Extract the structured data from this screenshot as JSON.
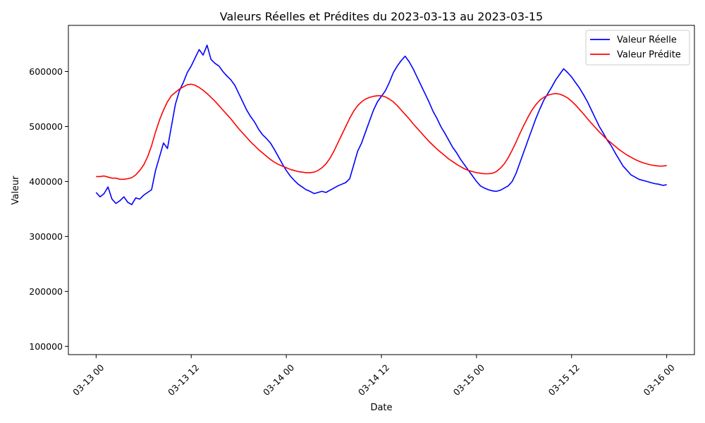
{
  "chart_data": {
    "type": "line",
    "title": "Valeurs Réelles et Prédites du 2023-03-13 au 2023-03-15",
    "xlabel": "Date",
    "ylabel": "Valeur",
    "x_unit": "hours since 2023-03-13 00:00",
    "xlim": [
      -3.5,
      75.5
    ],
    "ylim": [
      85000,
      684000
    ],
    "x_ticks": [
      {
        "x": 0,
        "label": "03-13 00"
      },
      {
        "x": 12,
        "label": "03-13 12"
      },
      {
        "x": 24,
        "label": "03-14 00"
      },
      {
        "x": 36,
        "label": "03-14 12"
      },
      {
        "x": 48,
        "label": "03-15 00"
      },
      {
        "x": 60,
        "label": "03-15 12"
      },
      {
        "x": 72,
        "label": "03-16 00"
      }
    ],
    "y_ticks": [
      {
        "y": 100000,
        "label": "100000"
      },
      {
        "y": 200000,
        "label": "200000"
      },
      {
        "y": 300000,
        "label": "300000"
      },
      {
        "y": 400000,
        "label": "400000"
      },
      {
        "y": 500000,
        "label": "500000"
      },
      {
        "y": 600000,
        "label": "600000"
      }
    ],
    "grid": false,
    "legend_position": "top-right",
    "series": [
      {
        "name": "Valeur Réelle",
        "color": "#0000ff",
        "points": [
          [
            0,
            380000
          ],
          [
            0.5,
            372000
          ],
          [
            1,
            378000
          ],
          [
            1.5,
            390000
          ],
          [
            2,
            368000
          ],
          [
            2.5,
            360000
          ],
          [
            3,
            365000
          ],
          [
            3.5,
            372000
          ],
          [
            4,
            362000
          ],
          [
            4.5,
            358000
          ],
          [
            5,
            370000
          ],
          [
            5.5,
            368000
          ],
          [
            6,
            375000
          ],
          [
            6.5,
            380000
          ],
          [
            7,
            385000
          ],
          [
            7.5,
            420000
          ],
          [
            8,
            445000
          ],
          [
            8.5,
            470000
          ],
          [
            9,
            460000
          ],
          [
            9.5,
            500000
          ],
          [
            10,
            540000
          ],
          [
            10.5,
            565000
          ],
          [
            11,
            580000
          ],
          [
            11.5,
            598000
          ],
          [
            12,
            610000
          ],
          [
            12.5,
            625000
          ],
          [
            13,
            640000
          ],
          [
            13.5,
            630000
          ],
          [
            14,
            648000
          ],
          [
            14.5,
            622000
          ],
          [
            15,
            615000
          ],
          [
            15.5,
            610000
          ],
          [
            16,
            600000
          ],
          [
            16.5,
            592000
          ],
          [
            17,
            585000
          ],
          [
            17.5,
            575000
          ],
          [
            18,
            560000
          ],
          [
            18.5,
            545000
          ],
          [
            19,
            530000
          ],
          [
            19.5,
            518000
          ],
          [
            20,
            508000
          ],
          [
            20.5,
            495000
          ],
          [
            21,
            485000
          ],
          [
            21.5,
            478000
          ],
          [
            22,
            470000
          ],
          [
            22.5,
            458000
          ],
          [
            23,
            445000
          ],
          [
            23.5,
            432000
          ],
          [
            24,
            420000
          ],
          [
            24.5,
            410000
          ],
          [
            25,
            402000
          ],
          [
            25.5,
            395000
          ],
          [
            26,
            390000
          ],
          [
            26.5,
            385000
          ],
          [
            27,
            382000
          ],
          [
            27.5,
            378000
          ],
          [
            28,
            380000
          ],
          [
            28.5,
            382000
          ],
          [
            29,
            380000
          ],
          [
            29.5,
            384000
          ],
          [
            30,
            388000
          ],
          [
            30.5,
            392000
          ],
          [
            31,
            395000
          ],
          [
            31.5,
            398000
          ],
          [
            32,
            405000
          ],
          [
            32.5,
            430000
          ],
          [
            33,
            455000
          ],
          [
            33.5,
            470000
          ],
          [
            34,
            490000
          ],
          [
            34.5,
            510000
          ],
          [
            35,
            530000
          ],
          [
            35.5,
            545000
          ],
          [
            36,
            555000
          ],
          [
            36.5,
            565000
          ],
          [
            37,
            580000
          ],
          [
            37.5,
            598000
          ],
          [
            38,
            610000
          ],
          [
            38.5,
            620000
          ],
          [
            39,
            628000
          ],
          [
            39.5,
            618000
          ],
          [
            40,
            605000
          ],
          [
            40.5,
            590000
          ],
          [
            41,
            575000
          ],
          [
            41.5,
            560000
          ],
          [
            42,
            545000
          ],
          [
            42.5,
            528000
          ],
          [
            43,
            515000
          ],
          [
            43.5,
            500000
          ],
          [
            44,
            488000
          ],
          [
            44.5,
            475000
          ],
          [
            45,
            462000
          ],
          [
            45.5,
            452000
          ],
          [
            46,
            440000
          ],
          [
            46.5,
            430000
          ],
          [
            47,
            420000
          ],
          [
            47.5,
            410000
          ],
          [
            48,
            400000
          ],
          [
            48.5,
            392000
          ],
          [
            49,
            388000
          ],
          [
            49.5,
            385000
          ],
          [
            50,
            383000
          ],
          [
            50.5,
            382000
          ],
          [
            51,
            384000
          ],
          [
            51.5,
            388000
          ],
          [
            52,
            392000
          ],
          [
            52.5,
            400000
          ],
          [
            53,
            415000
          ],
          [
            53.5,
            435000
          ],
          [
            54,
            455000
          ],
          [
            54.5,
            475000
          ],
          [
            55,
            495000
          ],
          [
            55.5,
            515000
          ],
          [
            56,
            532000
          ],
          [
            56.5,
            548000
          ],
          [
            57,
            560000
          ],
          [
            57.5,
            572000
          ],
          [
            58,
            585000
          ],
          [
            58.5,
            595000
          ],
          [
            59,
            605000
          ],
          [
            59.5,
            598000
          ],
          [
            60,
            590000
          ],
          [
            60.5,
            580000
          ],
          [
            61,
            570000
          ],
          [
            61.5,
            558000
          ],
          [
            62,
            545000
          ],
          [
            62.5,
            530000
          ],
          [
            63,
            515000
          ],
          [
            63.5,
            500000
          ],
          [
            64,
            488000
          ],
          [
            64.5,
            475000
          ],
          [
            65,
            465000
          ],
          [
            65.5,
            452000
          ],
          [
            66,
            440000
          ],
          [
            66.5,
            428000
          ],
          [
            67,
            420000
          ],
          [
            67.5,
            412000
          ],
          [
            68,
            408000
          ],
          [
            68.5,
            404000
          ],
          [
            69,
            402000
          ],
          [
            69.5,
            400000
          ],
          [
            70,
            398000
          ],
          [
            70.5,
            396000
          ],
          [
            71,
            395000
          ],
          [
            71.5,
            393000
          ],
          [
            72,
            394000
          ]
        ]
      },
      {
        "name": "Valeur Prédite",
        "color": "#ff0000",
        "points": [
          [
            0,
            409000
          ],
          [
            0.5,
            409000
          ],
          [
            1,
            410000
          ],
          [
            1.5,
            408000
          ],
          [
            2,
            406000
          ],
          [
            2.5,
            406000
          ],
          [
            3,
            404000
          ],
          [
            3.5,
            404000
          ],
          [
            4,
            405000
          ],
          [
            4.5,
            407000
          ],
          [
            5,
            412000
          ],
          [
            5.5,
            420000
          ],
          [
            6,
            430000
          ],
          [
            6.5,
            445000
          ],
          [
            7,
            465000
          ],
          [
            7.5,
            490000
          ],
          [
            8,
            512000
          ],
          [
            8.5,
            530000
          ],
          [
            9,
            545000
          ],
          [
            9.5,
            556000
          ],
          [
            10,
            562000
          ],
          [
            10.5,
            568000
          ],
          [
            11,
            572000
          ],
          [
            11.5,
            576000
          ],
          [
            12,
            577000
          ],
          [
            12.5,
            575000
          ],
          [
            13,
            571000
          ],
          [
            13.5,
            566000
          ],
          [
            14,
            560000
          ],
          [
            14.5,
            553000
          ],
          [
            15,
            546000
          ],
          [
            15.5,
            538000
          ],
          [
            16,
            530000
          ],
          [
            16.5,
            522000
          ],
          [
            17,
            514000
          ],
          [
            17.5,
            505000
          ],
          [
            18,
            496000
          ],
          [
            18.5,
            488000
          ],
          [
            19,
            480000
          ],
          [
            19.5,
            472000
          ],
          [
            20,
            465000
          ],
          [
            20.5,
            458000
          ],
          [
            21,
            452000
          ],
          [
            21.5,
            446000
          ],
          [
            22,
            440000
          ],
          [
            22.5,
            435000
          ],
          [
            23,
            431000
          ],
          [
            23.5,
            428000
          ],
          [
            24,
            425000
          ],
          [
            24.5,
            422000
          ],
          [
            25,
            420000
          ],
          [
            25.5,
            418000
          ],
          [
            26,
            417000
          ],
          [
            26.5,
            416000
          ],
          [
            27,
            416000
          ],
          [
            27.5,
            417000
          ],
          [
            28,
            420000
          ],
          [
            28.5,
            425000
          ],
          [
            29,
            432000
          ],
          [
            29.5,
            442000
          ],
          [
            30,
            455000
          ],
          [
            30.5,
            470000
          ],
          [
            31,
            485000
          ],
          [
            31.5,
            500000
          ],
          [
            32,
            515000
          ],
          [
            32.5,
            528000
          ],
          [
            33,
            538000
          ],
          [
            33.5,
            545000
          ],
          [
            34,
            550000
          ],
          [
            34.5,
            553000
          ],
          [
            35,
            555000
          ],
          [
            35.5,
            556000
          ],
          [
            36,
            556000
          ],
          [
            36.5,
            554000
          ],
          [
            37,
            550000
          ],
          [
            37.5,
            545000
          ],
          [
            38,
            538000
          ],
          [
            38.5,
            530000
          ],
          [
            39,
            522000
          ],
          [
            39.5,
            514000
          ],
          [
            40,
            505000
          ],
          [
            40.5,
            497000
          ],
          [
            41,
            489000
          ],
          [
            41.5,
            481000
          ],
          [
            42,
            473000
          ],
          [
            42.5,
            466000
          ],
          [
            43,
            459000
          ],
          [
            43.5,
            453000
          ],
          [
            44,
            447000
          ],
          [
            44.5,
            441000
          ],
          [
            45,
            436000
          ],
          [
            45.5,
            431000
          ],
          [
            46,
            427000
          ],
          [
            46.5,
            423000
          ],
          [
            47,
            420000
          ],
          [
            47.5,
            418000
          ],
          [
            48,
            416000
          ],
          [
            48.5,
            415000
          ],
          [
            49,
            414000
          ],
          [
            49.5,
            414000
          ],
          [
            50,
            415000
          ],
          [
            50.5,
            418000
          ],
          [
            51,
            424000
          ],
          [
            51.5,
            432000
          ],
          [
            52,
            443000
          ],
          [
            52.5,
            457000
          ],
          [
            53,
            472000
          ],
          [
            53.5,
            488000
          ],
          [
            54,
            503000
          ],
          [
            54.5,
            517000
          ],
          [
            55,
            530000
          ],
          [
            55.5,
            540000
          ],
          [
            56,
            548000
          ],
          [
            56.5,
            553000
          ],
          [
            57,
            557000
          ],
          [
            57.5,
            559000
          ],
          [
            58,
            560000
          ],
          [
            58.5,
            559000
          ],
          [
            59,
            556000
          ],
          [
            59.5,
            552000
          ],
          [
            60,
            546000
          ],
          [
            60.5,
            539000
          ],
          [
            61,
            531000
          ],
          [
            61.5,
            523000
          ],
          [
            62,
            514000
          ],
          [
            62.5,
            506000
          ],
          [
            63,
            498000
          ],
          [
            63.5,
            490000
          ],
          [
            64,
            483000
          ],
          [
            64.5,
            476000
          ],
          [
            65,
            470000
          ],
          [
            65.5,
            464000
          ],
          [
            66,
            458000
          ],
          [
            66.5,
            453000
          ],
          [
            67,
            448000
          ],
          [
            67.5,
            444000
          ],
          [
            68,
            440000
          ],
          [
            68.5,
            437000
          ],
          [
            69,
            434000
          ],
          [
            69.5,
            432000
          ],
          [
            70,
            430000
          ],
          [
            70.5,
            429000
          ],
          [
            71,
            428000
          ],
          [
            71.5,
            428000
          ],
          [
            72,
            429000
          ]
        ]
      }
    ]
  }
}
